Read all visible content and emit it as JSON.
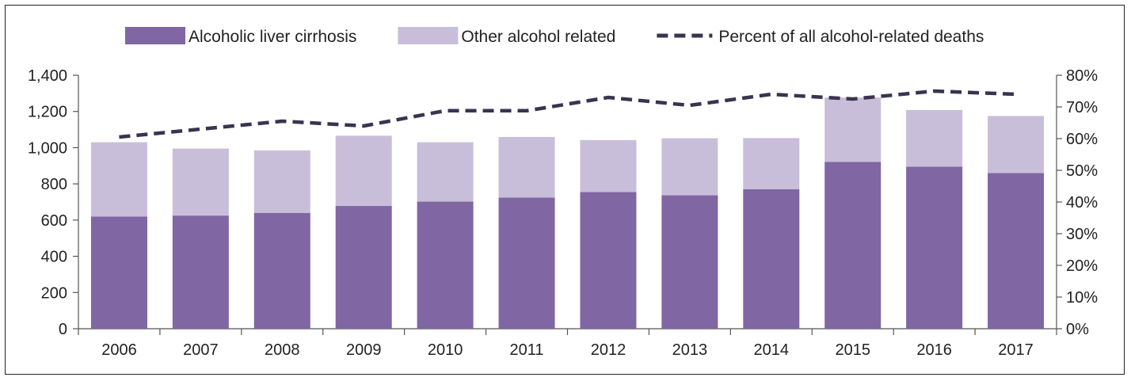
{
  "chart_data": {
    "type": "bar",
    "categories": [
      "2006",
      "2007",
      "2008",
      "2009",
      "2010",
      "2011",
      "2012",
      "2013",
      "2014",
      "2015",
      "2016",
      "2017"
    ],
    "series": [
      {
        "name": "Alcoholic liver cirrhosis",
        "kind": "bar",
        "stack": "deaths",
        "color": "#8066A3",
        "values": [
          620,
          625,
          640,
          678,
          702,
          724,
          755,
          737,
          770,
          922,
          895,
          860
        ]
      },
      {
        "name": "Other alcohol related",
        "kind": "bar",
        "stack": "deaths",
        "color": "#C9BEDA",
        "values": [
          410,
          370,
          345,
          388,
          328,
          335,
          287,
          315,
          283,
          355,
          313,
          315
        ]
      },
      {
        "name": "Percent of all alcohol-related deaths",
        "kind": "line",
        "axis": "right",
        "color": "#3A3350",
        "dashed": true,
        "values": [
          60.5,
          63.0,
          65.5,
          64.0,
          68.8,
          68.8,
          73.0,
          70.5,
          74.0,
          72.5,
          75.0,
          74.0
        ]
      }
    ],
    "y_left": {
      "min": 0,
      "max": 1400,
      "ticks": [
        "0",
        "200",
        "400",
        "600",
        "800",
        "1,000",
        "1,200",
        "1,400"
      ]
    },
    "y_right": {
      "min": 0,
      "max": 80,
      "ticks": [
        "0%",
        "10%",
        "20%",
        "30%",
        "40%",
        "50%",
        "60%",
        "70%",
        "80%"
      ]
    },
    "legend": {
      "placement": "top-center"
    },
    "grid": false
  }
}
